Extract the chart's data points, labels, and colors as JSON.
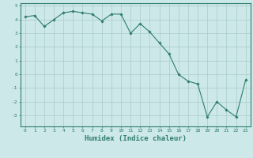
{
  "xlabel": "Humidex (Indice chaleur)",
  "x": [
    0,
    1,
    2,
    3,
    4,
    5,
    6,
    7,
    8,
    9,
    10,
    11,
    12,
    13,
    14,
    15,
    16,
    17,
    18,
    19,
    20,
    21,
    22,
    23
  ],
  "y": [
    4.2,
    4.3,
    3.5,
    4.0,
    4.5,
    4.6,
    4.5,
    4.4,
    3.9,
    4.4,
    4.4,
    3.0,
    3.7,
    3.1,
    2.3,
    1.5,
    0.0,
    -0.5,
    -0.7,
    -3.1,
    -2.0,
    -2.6,
    -3.1,
    -0.4
  ],
  "line_color": "#2e7d6e",
  "marker": "D",
  "marker_size": 1.8,
  "line_width": 0.8,
  "bg_color": "#cce8e8",
  "grid_color": "#aacaca",
  "ylim": [
    -3.8,
    5.2
  ],
  "xlim": [
    -0.5,
    23.5
  ],
  "yticks": [
    -3,
    -2,
    -1,
    0,
    1,
    2,
    3,
    4,
    5
  ],
  "xticks": [
    0,
    1,
    2,
    3,
    4,
    5,
    6,
    7,
    8,
    9,
    10,
    11,
    12,
    13,
    14,
    15,
    16,
    17,
    18,
    19,
    20,
    21,
    22,
    23
  ],
  "tick_labelsize": 4.5,
  "xlabel_fontsize": 6.5,
  "axis_color": "#2e7d6e",
  "spine_color": "#2e7d6e"
}
